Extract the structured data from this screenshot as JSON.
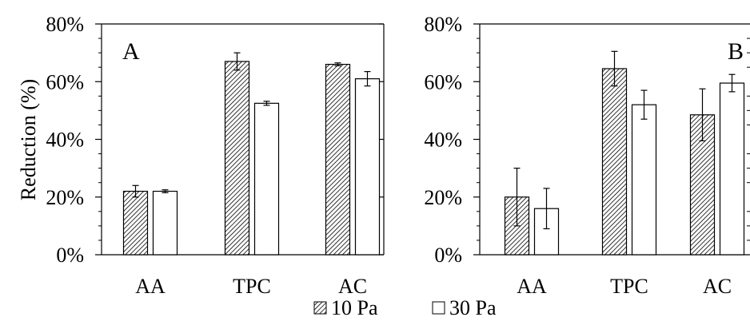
{
  "chart_data": [
    {
      "type": "bar",
      "panel_label": "A",
      "ylabel": "Reduction (%)",
      "ylim": [
        0,
        80
      ],
      "yticks": [
        "0%",
        "20%",
        "40%",
        "60%",
        "80%"
      ],
      "categories": [
        "AA",
        "TPC",
        "AC"
      ],
      "series": [
        {
          "name": "10 Pa",
          "values": [
            22,
            67,
            66
          ],
          "errors": [
            2,
            3,
            0.5
          ]
        },
        {
          "name": "30 Pa",
          "values": [
            22,
            52.5,
            61
          ],
          "errors": [
            0.5,
            0.7,
            2.5
          ]
        }
      ]
    },
    {
      "type": "bar",
      "panel_label": "B",
      "ylabel": "",
      "ylim": [
        0,
        80
      ],
      "yticks": [
        "0%",
        "20%",
        "40%",
        "60%",
        "80%"
      ],
      "categories": [
        "AA",
        "TPC",
        "AC"
      ],
      "series": [
        {
          "name": "10 Pa",
          "values": [
            20,
            64.5,
            48.5
          ],
          "errors": [
            10,
            6,
            9
          ]
        },
        {
          "name": "30 Pa",
          "values": [
            16,
            52,
            59.5
          ],
          "errors": [
            7,
            5,
            3
          ]
        }
      ]
    }
  ],
  "legend": [
    {
      "label": "10 Pa",
      "pattern": "hatched"
    },
    {
      "label": "30 Pa",
      "pattern": "open"
    }
  ],
  "colors": {
    "bar_fill": "#ffffff",
    "stroke": "#000000",
    "hatch": "#000000"
  }
}
